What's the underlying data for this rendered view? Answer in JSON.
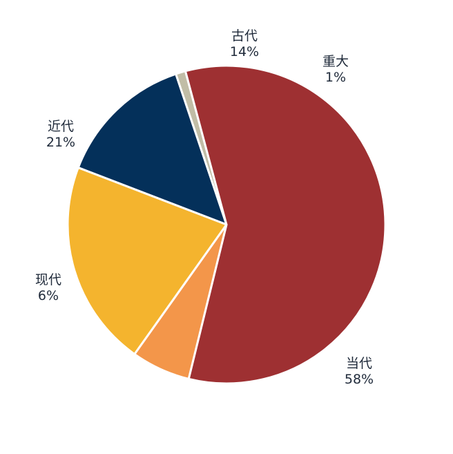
{
  "chart_data": {
    "type": "pie",
    "title": "",
    "slices": [
      {
        "label": "古代",
        "value": 14,
        "value_label": "14%",
        "color": "#04305a"
      },
      {
        "label": "重大",
        "value": 1,
        "value_label": "1%",
        "color": "#c1bda6"
      },
      {
        "label": "当代",
        "value": 58,
        "value_label": "58%",
        "color": "#9e3032"
      },
      {
        "label": "现代",
        "value": 6,
        "value_label": "6%",
        "color": "#f3964a"
      },
      {
        "label": "近代",
        "value": 21,
        "value_label": "21%",
        "color": "#f4b42e"
      }
    ],
    "legend": "none"
  }
}
